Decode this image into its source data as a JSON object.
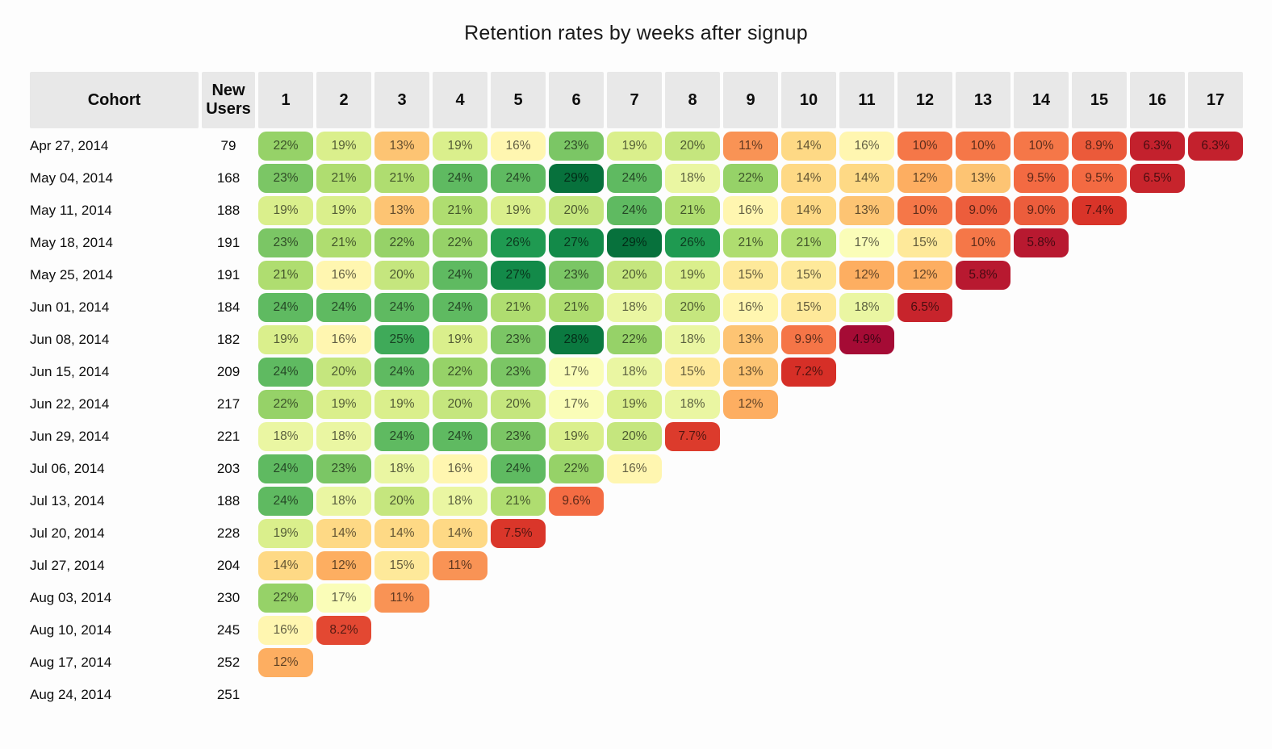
{
  "title": "Retention rates by weeks after signup",
  "table": {
    "cohort_header": "Cohort",
    "new_users_header": "New Users"
  },
  "colors": {
    "page_bg": "#fdfdfd",
    "header_bg": "#e8e8e8",
    "text": "#111111",
    "cell_text": "rgba(0,0,0,0.62)"
  },
  "chart_data": {
    "type": "heatmap",
    "title": "Retention rates by weeks after signup",
    "columns": [
      "1",
      "2",
      "3",
      "4",
      "5",
      "6",
      "7",
      "8",
      "9",
      "10",
      "11",
      "12",
      "13",
      "14",
      "15",
      "16",
      "17"
    ],
    "value_unit": "%",
    "value_format": "one decimal below 10, integer otherwise",
    "colorscale": {
      "stops": [
        "#a50b35",
        "#d73027",
        "#f46d43",
        "#fdae61",
        "#fee08b",
        "#ffffbf",
        "#d9ef8b",
        "#a6d96a",
        "#66bd63",
        "#1a9850",
        "#07713c"
      ],
      "domain": [
        4.9,
        28.5
      ]
    },
    "rows": [
      {
        "cohort": "Apr 27, 2014",
        "new_users": 79,
        "values": [
          22,
          19,
          13,
          19,
          16,
          23,
          19,
          20,
          11,
          14,
          16,
          10,
          10,
          10,
          8.9,
          6.3,
          6.3
        ]
      },
      {
        "cohort": "May 04, 2014",
        "new_users": 168,
        "values": [
          23,
          21,
          21,
          24,
          24,
          29,
          24,
          18,
          22,
          14,
          14,
          12,
          13,
          9.5,
          9.5,
          6.5
        ]
      },
      {
        "cohort": "May 11, 2014",
        "new_users": 188,
        "values": [
          19,
          19,
          13,
          21,
          19,
          20,
          24,
          21,
          16,
          14,
          13,
          10,
          9.0,
          9.0,
          7.4
        ]
      },
      {
        "cohort": "May 18, 2014",
        "new_users": 191,
        "values": [
          23,
          21,
          22,
          22,
          26,
          27,
          29,
          26,
          21,
          21,
          17,
          15,
          10,
          5.8
        ]
      },
      {
        "cohort": "May 25, 2014",
        "new_users": 191,
        "values": [
          21,
          16,
          20,
          24,
          27,
          23,
          20,
          19,
          15,
          15,
          12,
          12,
          5.8
        ]
      },
      {
        "cohort": "Jun 01, 2014",
        "new_users": 184,
        "values": [
          24,
          24,
          24,
          24,
          21,
          21,
          18,
          20,
          16,
          15,
          18,
          6.5
        ]
      },
      {
        "cohort": "Jun 08, 2014",
        "new_users": 182,
        "values": [
          19,
          16,
          25,
          19,
          23,
          28,
          22,
          18,
          13,
          9.9,
          4.9
        ]
      },
      {
        "cohort": "Jun 15, 2014",
        "new_users": 209,
        "values": [
          24,
          20,
          24,
          22,
          23,
          17,
          18,
          15,
          13,
          7.2
        ]
      },
      {
        "cohort": "Jun 22, 2014",
        "new_users": 217,
        "values": [
          22,
          19,
          19,
          20,
          20,
          17,
          19,
          18,
          12
        ]
      },
      {
        "cohort": "Jun 29, 2014",
        "new_users": 221,
        "values": [
          18,
          18,
          24,
          24,
          23,
          19,
          20,
          7.7
        ]
      },
      {
        "cohort": "Jul 06, 2014",
        "new_users": 203,
        "values": [
          24,
          23,
          18,
          16,
          24,
          22,
          16
        ]
      },
      {
        "cohort": "Jul 13, 2014",
        "new_users": 188,
        "values": [
          24,
          18,
          20,
          18,
          21,
          9.6
        ]
      },
      {
        "cohort": "Jul 20, 2014",
        "new_users": 228,
        "values": [
          19,
          14,
          14,
          14,
          7.5
        ]
      },
      {
        "cohort": "Jul 27, 2014",
        "new_users": 204,
        "values": [
          14,
          12,
          15,
          11
        ]
      },
      {
        "cohort": "Aug 03, 2014",
        "new_users": 230,
        "values": [
          22,
          17,
          11
        ]
      },
      {
        "cohort": "Aug 10, 2014",
        "new_users": 245,
        "values": [
          16,
          8.2
        ]
      },
      {
        "cohort": "Aug 17, 2014",
        "new_users": 252,
        "values": [
          12
        ]
      },
      {
        "cohort": "Aug 24, 2014",
        "new_users": 251,
        "values": []
      }
    ]
  }
}
